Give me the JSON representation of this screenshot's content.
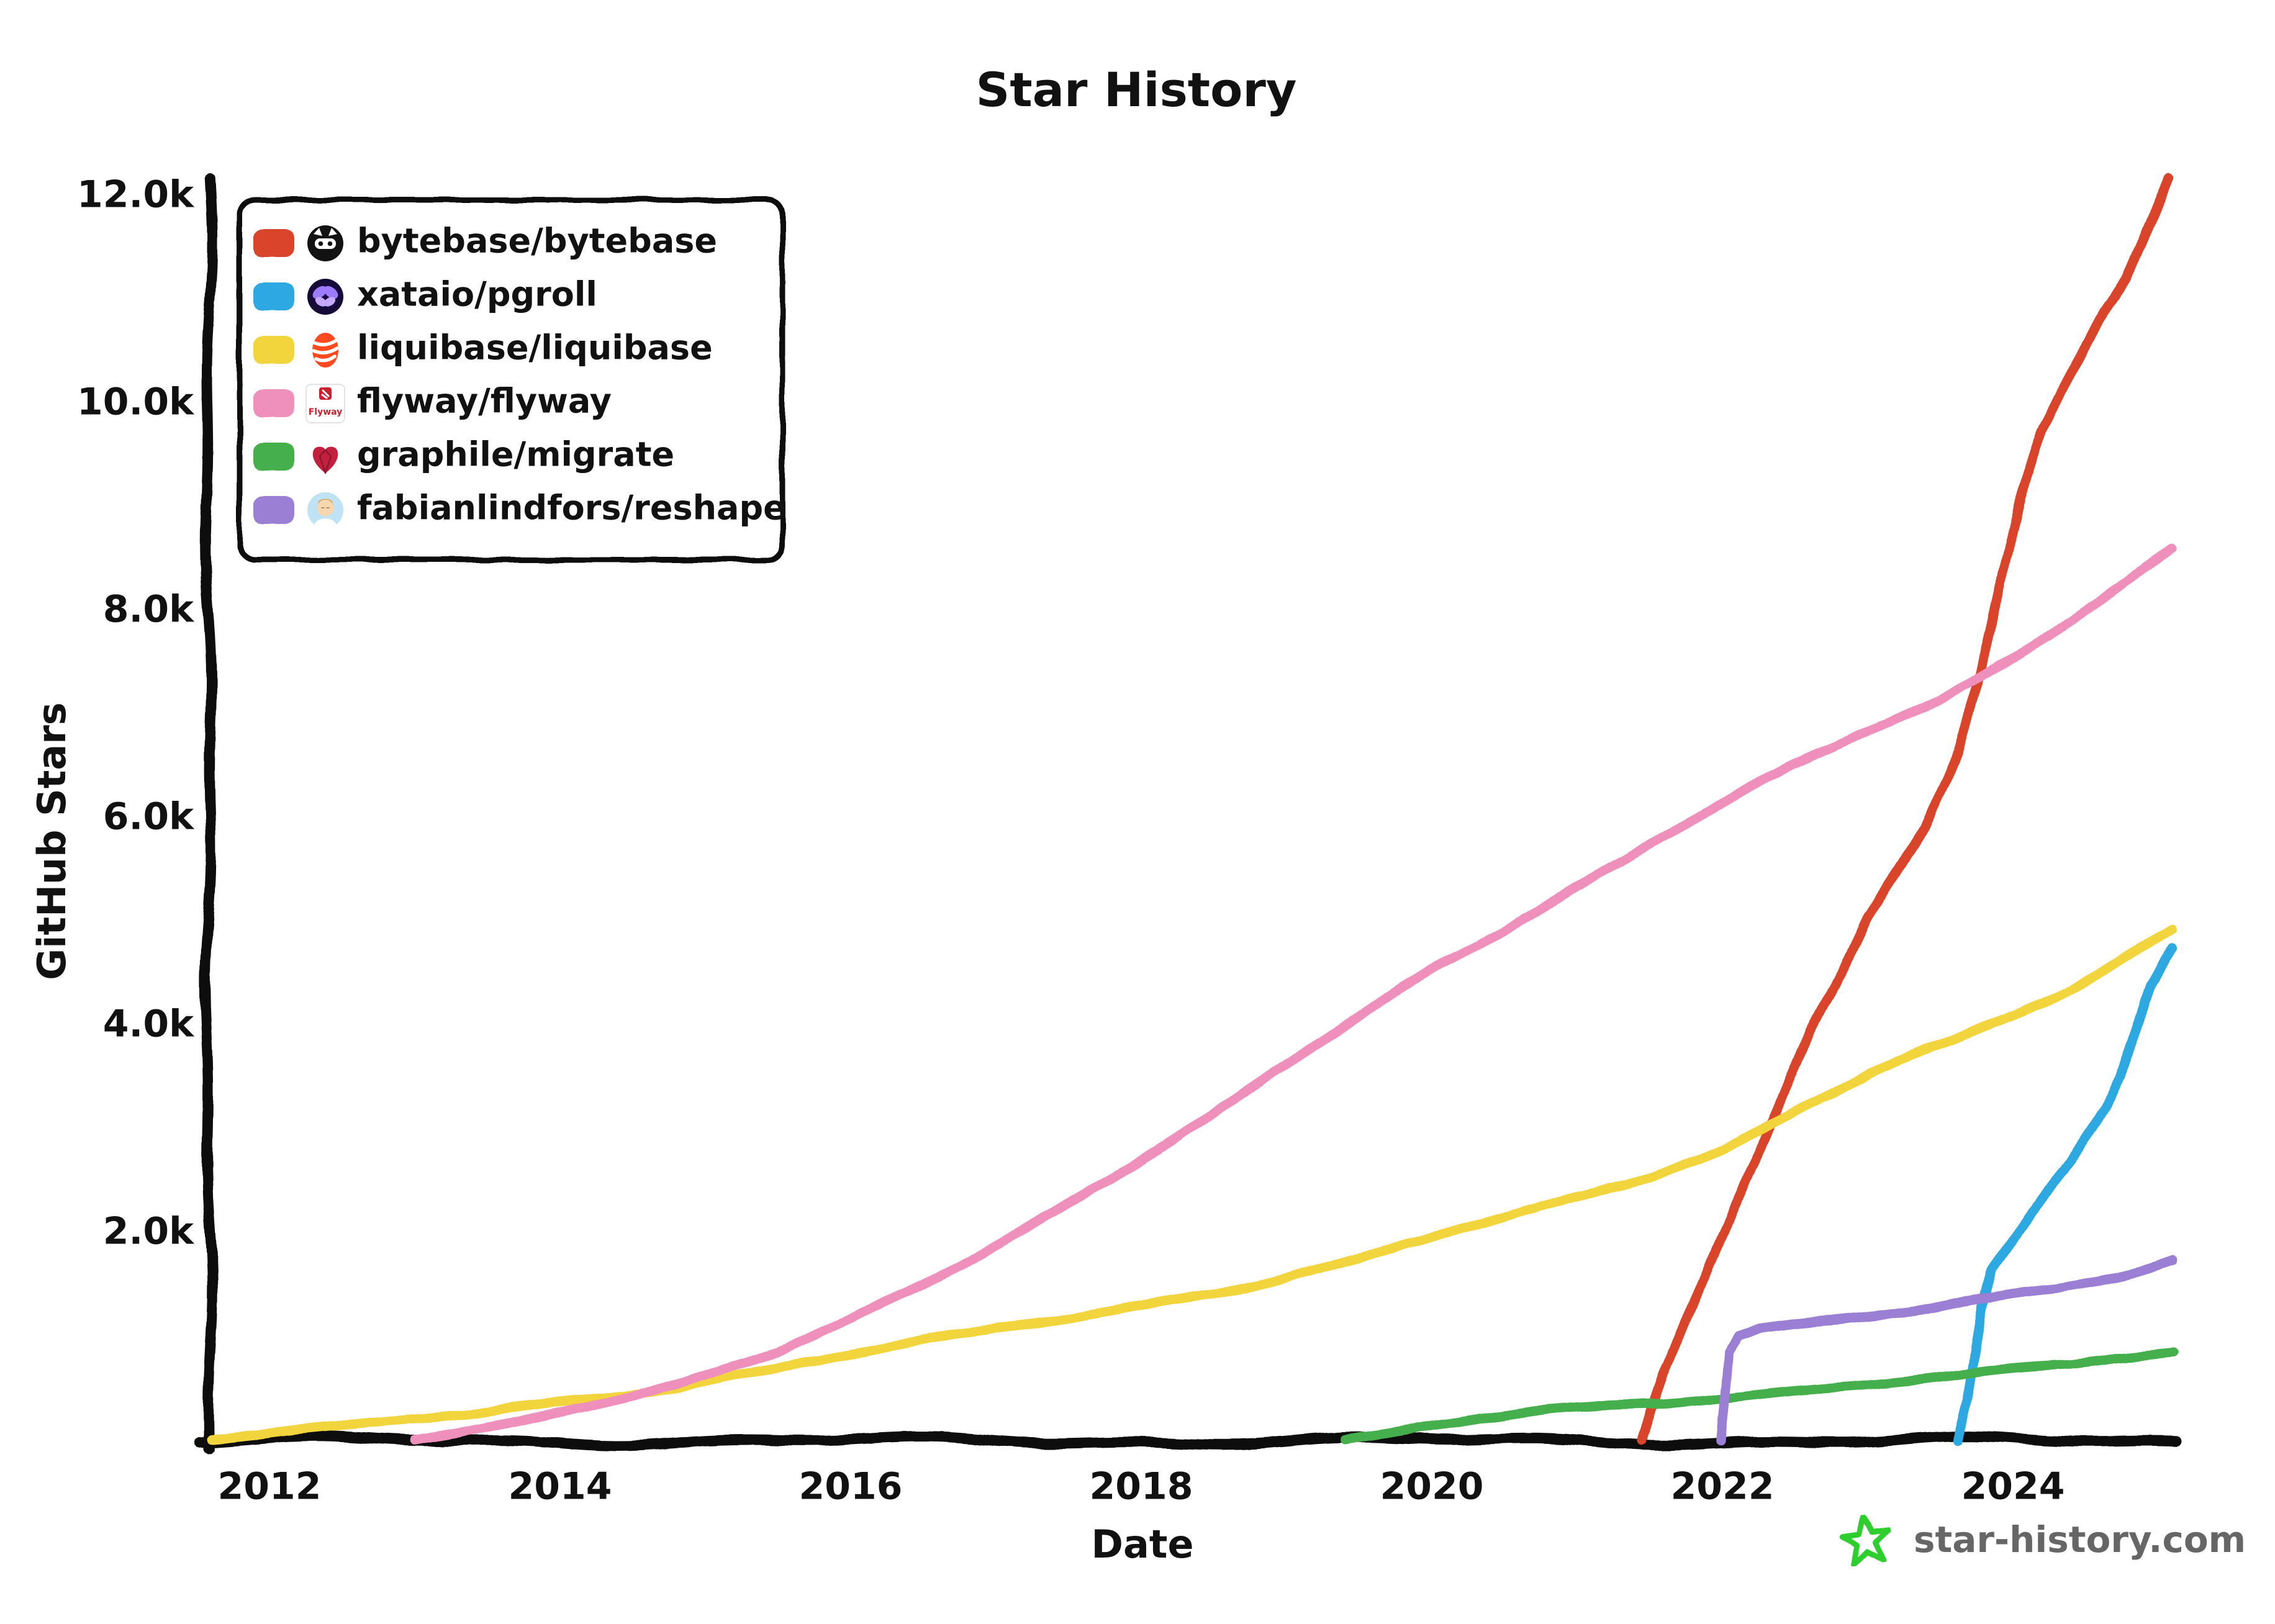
{
  "title": "Star History",
  "axes": {
    "x_label": "Date",
    "y_label": "GitHub Stars",
    "x_ticks": [
      {
        "label": "2012",
        "year": 2012
      },
      {
        "label": "2014",
        "year": 2014
      },
      {
        "label": "2016",
        "year": 2016
      },
      {
        "label": "2018",
        "year": 2018
      },
      {
        "label": "2020",
        "year": 2020
      },
      {
        "label": "2022",
        "year": 2022
      },
      {
        "label": "2024",
        "year": 2024
      }
    ],
    "y_ticks": [
      {
        "label": "2.0k",
        "value": 2000
      },
      {
        "label": "4.0k",
        "value": 4000
      },
      {
        "label": "6.0k",
        "value": 6000
      },
      {
        "label": "8.0k",
        "value": 8000
      },
      {
        "label": "10.0k",
        "value": 10000
      },
      {
        "label": "12.0k",
        "value": 12000
      }
    ]
  },
  "legend": [
    {
      "label": "bytebase/bytebase",
      "color": "#d9452c",
      "icon": "bytebase-icon"
    },
    {
      "label": "xataio/pgroll",
      "color": "#2ea8e0",
      "icon": "xata-butterfly-icon"
    },
    {
      "label": "liquibase/liquibase",
      "color": "#f2d43d",
      "icon": "liquibase-drop-icon"
    },
    {
      "label": "flyway/flyway",
      "color": "#ef8fbc",
      "icon": "flyway-logo-icon"
    },
    {
      "label": "graphile/migrate",
      "color": "#44af4c",
      "icon": "graphile-heart-icon"
    },
    {
      "label": "fabianlindfors/reshape",
      "color": "#9b7fd4",
      "icon": "avatar-icon"
    }
  ],
  "watermark": {
    "text": "star-history.com",
    "star_color": "#2fce2f",
    "text_color": "#666666"
  },
  "chart_data": {
    "type": "line",
    "title": "Star History",
    "xlabel": "Date",
    "ylabel": "GitHub Stars",
    "x_unit": "decimal_year",
    "x_range": [
      2011.55,
      2025.15
    ],
    "y_range": [
      0,
      12400
    ],
    "grid": false,
    "legend_position": "top-left",
    "series": [
      {
        "name": "bytebase/bytebase",
        "color": "#d9452c",
        "points": [
          [
            2021.45,
            0
          ],
          [
            2021.6,
            650
          ],
          [
            2021.75,
            1150
          ],
          [
            2021.9,
            1600
          ],
          [
            2022.05,
            2100
          ],
          [
            2022.2,
            2650
          ],
          [
            2022.4,
            3300
          ],
          [
            2022.6,
            3950
          ],
          [
            2022.8,
            4500
          ],
          [
            2023.0,
            5050
          ],
          [
            2023.2,
            5450
          ],
          [
            2023.4,
            5900
          ],
          [
            2023.6,
            6550
          ],
          [
            2023.78,
            7400
          ],
          [
            2023.9,
            8300
          ],
          [
            2024.05,
            9100
          ],
          [
            2024.2,
            9750
          ],
          [
            2024.4,
            10300
          ],
          [
            2024.6,
            10800
          ],
          [
            2024.8,
            11200
          ],
          [
            2024.95,
            11750
          ],
          [
            2025.07,
            12200
          ]
        ]
      },
      {
        "name": "xataio/pgroll",
        "color": "#2ea8e0",
        "points": [
          [
            2023.62,
            0
          ],
          [
            2023.68,
            400
          ],
          [
            2023.73,
            900
          ],
          [
            2023.78,
            1300
          ],
          [
            2023.85,
            1650
          ],
          [
            2023.95,
            1850
          ],
          [
            2024.1,
            2150
          ],
          [
            2024.25,
            2450
          ],
          [
            2024.4,
            2700
          ],
          [
            2024.55,
            3000
          ],
          [
            2024.65,
            3200
          ],
          [
            2024.75,
            3500
          ],
          [
            2024.85,
            3950
          ],
          [
            2024.95,
            4400
          ],
          [
            2025.05,
            4650
          ],
          [
            2025.1,
            4750
          ]
        ]
      },
      {
        "name": "liquibase/liquibase",
        "color": "#f2d43d",
        "points": [
          [
            2011.6,
            20
          ],
          [
            2012,
            70
          ],
          [
            2012.5,
            120
          ],
          [
            2013,
            200
          ],
          [
            2013.5,
            280
          ],
          [
            2014,
            380
          ],
          [
            2014.5,
            470
          ],
          [
            2015,
            580
          ],
          [
            2015.5,
            700
          ],
          [
            2016,
            830
          ],
          [
            2016.5,
            950
          ],
          [
            2017,
            1080
          ],
          [
            2017.5,
            1190
          ],
          [
            2018,
            1310
          ],
          [
            2018.5,
            1430
          ],
          [
            2019,
            1580
          ],
          [
            2019.5,
            1750
          ],
          [
            2020,
            1960
          ],
          [
            2020.5,
            2150
          ],
          [
            2021,
            2350
          ],
          [
            2021.5,
            2550
          ],
          [
            2022,
            2820
          ],
          [
            2022.4,
            3100
          ],
          [
            2022.8,
            3400
          ],
          [
            2023.2,
            3650
          ],
          [
            2023.6,
            3850
          ],
          [
            2024,
            4100
          ],
          [
            2024.4,
            4350
          ],
          [
            2024.7,
            4600
          ],
          [
            2025.1,
            4950
          ]
        ]
      },
      {
        "name": "flyway/flyway",
        "color": "#ef8fbc",
        "points": [
          [
            2013.0,
            10
          ],
          [
            2013.3,
            80
          ],
          [
            2013.7,
            190
          ],
          [
            2014,
            300
          ],
          [
            2014.5,
            450
          ],
          [
            2015,
            620
          ],
          [
            2015.5,
            850
          ],
          [
            2016,
            1160
          ],
          [
            2016.5,
            1500
          ],
          [
            2017,
            1900
          ],
          [
            2017.5,
            2300
          ],
          [
            2018,
            2720
          ],
          [
            2018.5,
            3150
          ],
          [
            2019,
            3620
          ],
          [
            2019.5,
            4080
          ],
          [
            2020,
            4550
          ],
          [
            2020.5,
            4950
          ],
          [
            2021,
            5350
          ],
          [
            2021.5,
            5750
          ],
          [
            2022,
            6150
          ],
          [
            2022.5,
            6500
          ],
          [
            2023,
            6850
          ],
          [
            2023.5,
            7150
          ],
          [
            2023.8,
            7400
          ],
          [
            2024.2,
            7750
          ],
          [
            2024.6,
            8100
          ],
          [
            2025.1,
            8600
          ]
        ]
      },
      {
        "name": "graphile/migrate",
        "color": "#44af4c",
        "points": [
          [
            2019.4,
            10
          ],
          [
            2019.7,
            60
          ],
          [
            2020,
            130
          ],
          [
            2020.4,
            220
          ],
          [
            2020.8,
            290
          ],
          [
            2021.2,
            330
          ],
          [
            2021.6,
            370
          ],
          [
            2022,
            430
          ],
          [
            2022.4,
            480
          ],
          [
            2022.8,
            530
          ],
          [
            2023.2,
            580
          ],
          [
            2023.6,
            620
          ],
          [
            2024,
            680
          ],
          [
            2024.4,
            730
          ],
          [
            2024.7,
            790
          ],
          [
            2025.1,
            840
          ]
        ]
      },
      {
        "name": "fabianlindfors/reshape",
        "color": "#9b7fd4",
        "points": [
          [
            2022.0,
            0
          ],
          [
            2022.03,
            850
          ],
          [
            2022.1,
            1020
          ],
          [
            2022.25,
            1100
          ],
          [
            2022.5,
            1140
          ],
          [
            2022.8,
            1170
          ],
          [
            2023.1,
            1220
          ],
          [
            2023.4,
            1280
          ],
          [
            2023.7,
            1350
          ],
          [
            2024,
            1400
          ],
          [
            2024.3,
            1450
          ],
          [
            2024.6,
            1530
          ],
          [
            2024.85,
            1620
          ],
          [
            2025.1,
            1730
          ]
        ]
      }
    ]
  }
}
